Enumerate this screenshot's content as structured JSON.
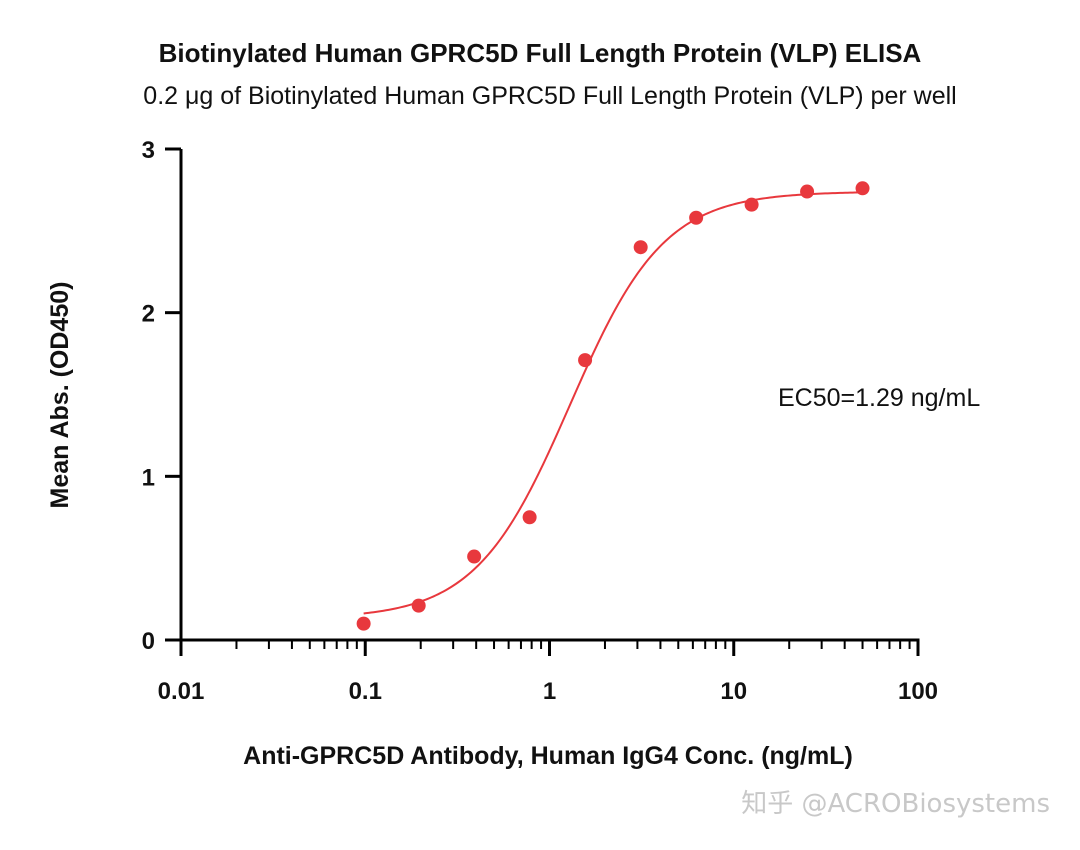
{
  "title": "Biotinylated Human GPRC5D Full Length Protein (VLP) ELISA",
  "subtitle": "0.2 μg of Biotinylated Human GPRC5D Full Length Protein (VLP) per well",
  "watermark": "知乎 @ACROBiosystems",
  "colors": {
    "series": "#e8383d",
    "axis": "#000000",
    "text": "#111111"
  },
  "chart_data": {
    "type": "scatter",
    "title": "Biotinylated Human GPRC5D Full Length Protein (VLP) ELISA",
    "subtitle": "0.2 μg of Biotinylated Human GPRC5D Full Length Protein (VLP) per well",
    "xlabel": "Anti-GPRC5D Antibody, Human IgG4 Conc. (ng/mL)",
    "ylabel": "Mean Abs. (OD450)",
    "x_scale": "log",
    "xlim": [
      0.01,
      100
    ],
    "ylim": [
      0,
      3
    ],
    "x_ticks": [
      "0.01",
      "0.1",
      "1",
      "10",
      "100"
    ],
    "y_ticks": [
      "0",
      "1",
      "2",
      "3"
    ],
    "series": [
      {
        "x": [
          0.098,
          0.195,
          0.39,
          0.78,
          1.56,
          3.125,
          6.25,
          12.5,
          25,
          50
        ],
        "y": [
          0.1,
          0.21,
          0.51,
          0.75,
          1.71,
          2.4,
          2.58,
          2.66,
          2.74,
          2.76
        ],
        "fit": {
          "model": "4PL",
          "bottom": 0.13,
          "top": 2.74,
          "ec50": 1.29,
          "hill": 1.7,
          "x_range": [
            0.098,
            50
          ]
        }
      }
    ],
    "annotations": [
      "EC50=1.29 ng/mL"
    ],
    "grid": false,
    "legend": "none"
  }
}
